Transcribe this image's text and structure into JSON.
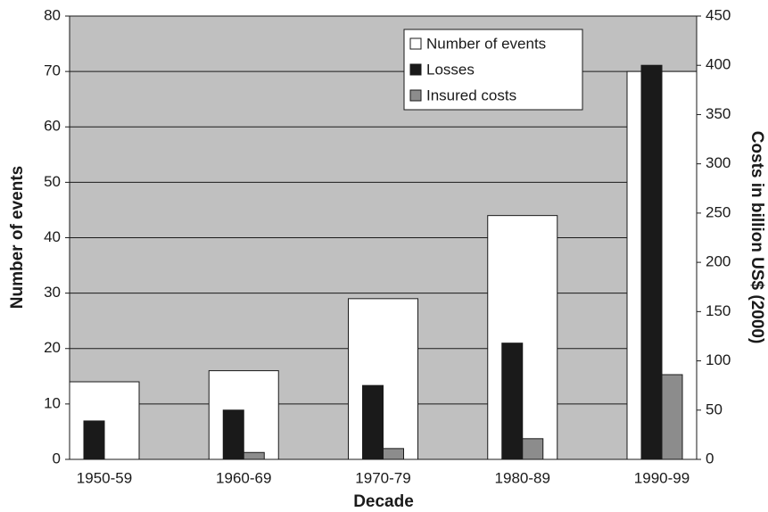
{
  "chart_data": {
    "type": "bar",
    "categories": [
      "1950-59",
      "1960-69",
      "1970-79",
      "1980-89",
      "1990-99"
    ],
    "x_label": "Decade",
    "y_label": "Number of events",
    "y2_label": "Costs in billion US$ (2000)",
    "series": [
      {
        "name": "Number of events",
        "color": "#ffffff",
        "values": [
          14,
          16,
          29,
          44,
          70
        ]
      },
      {
        "name": "Losses",
        "color": "#1a1a1a",
        "axis": "y2",
        "values": [
          39,
          50,
          75,
          118,
          400
        ]
      },
      {
        "name": "Insured costs",
        "color": "#8c8c8c",
        "axis": "y2",
        "values": [
          null,
          7,
          11,
          21,
          86
        ]
      }
    ],
    "ylim": [
      0,
      80
    ],
    "yticks": [
      0,
      10,
      20,
      30,
      40,
      50,
      60,
      70,
      80
    ],
    "y2lim": [
      0,
      450
    ],
    "y2ticks": [
      0,
      50,
      100,
      150,
      200,
      250,
      300,
      350,
      400,
      450
    ],
    "grid": true,
    "plot_background": "#c0c0c0",
    "legend": "top-right"
  }
}
